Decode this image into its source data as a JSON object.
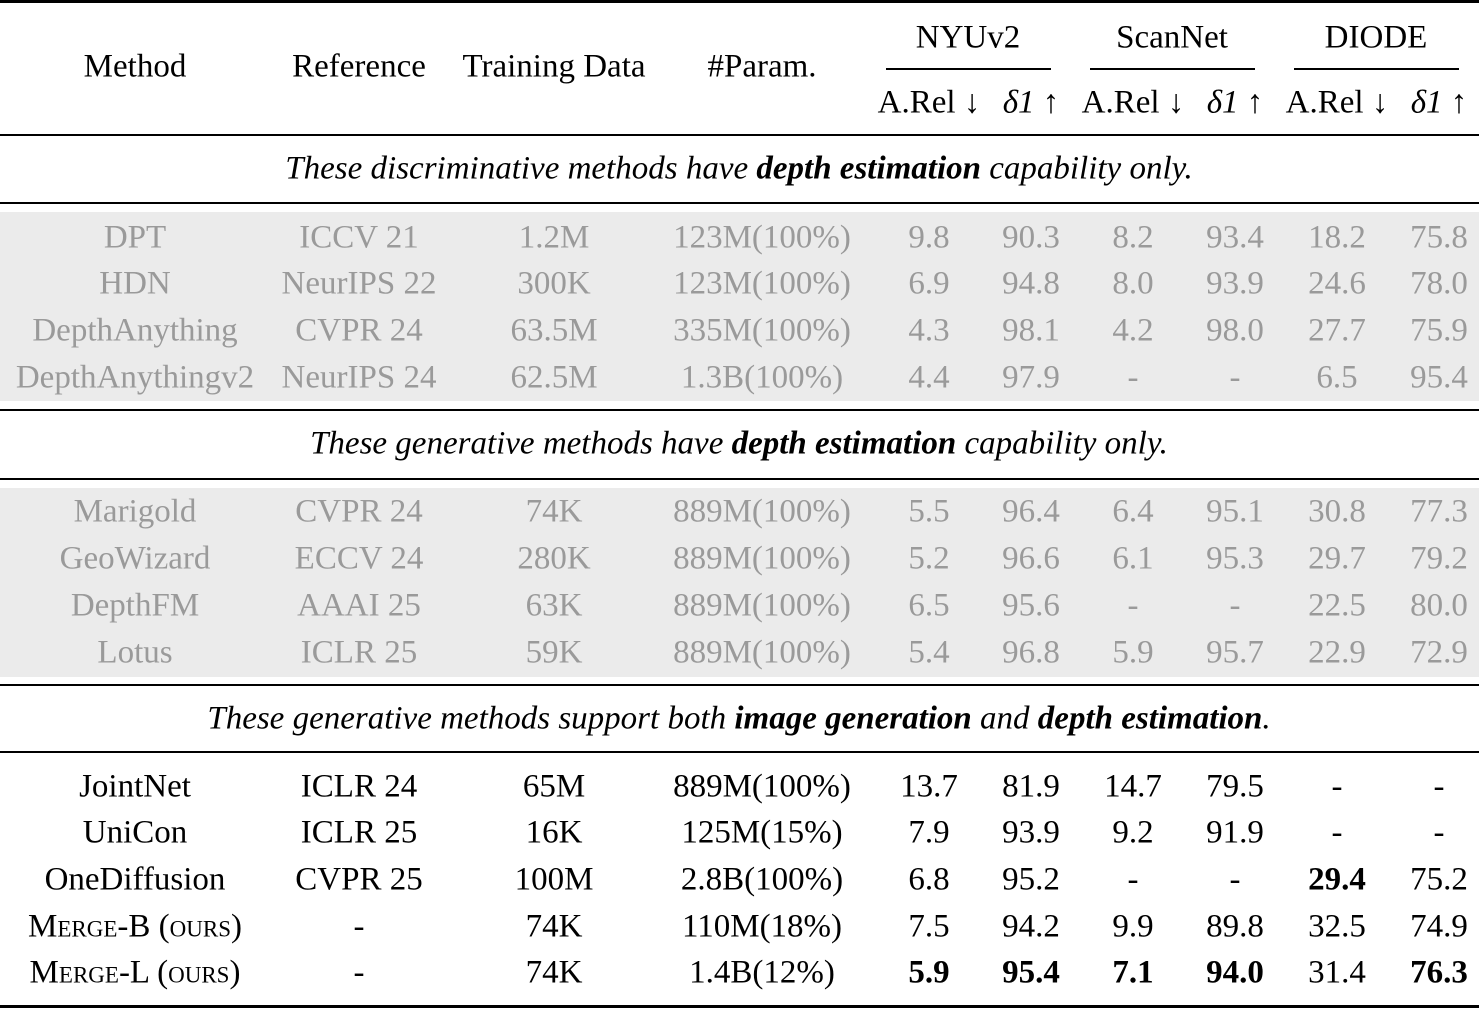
{
  "header": {
    "method": "Method",
    "reference": "Reference",
    "training_data": "Training Data",
    "params": "#Param.",
    "datasets": [
      "NYUv2",
      "ScanNet",
      "DIODE"
    ],
    "metrics": [
      "A.Rel ↓",
      "δ1 ↑",
      "A.Rel ↓",
      "δ1 ↑",
      "A.Rel ↓",
      "δ1 ↑"
    ]
  },
  "sections": [
    {
      "caption_pre": "These discriminative methods have ",
      "caption_b1": "depth estimation",
      "caption_mid": " capability only.",
      "caption_b2": "",
      "caption_post": "",
      "rows": [
        [
          "DPT",
          "ICCV 21",
          "1.2M",
          "123M(100%)",
          "9.8",
          "90.3",
          "8.2",
          "93.4",
          "18.2",
          "75.8"
        ],
        [
          "HDN",
          "NeurIPS 22",
          "300K",
          "123M(100%)",
          "6.9",
          "94.8",
          "8.0",
          "93.9",
          "24.6",
          "78.0"
        ],
        [
          "DepthAnything",
          "CVPR 24",
          "63.5M",
          "335M(100%)",
          "4.3",
          "98.1",
          "4.2",
          "98.0",
          "27.7",
          "75.9"
        ],
        [
          "DepthAnythingv2",
          "NeurIPS 24",
          "62.5M",
          "1.3B(100%)",
          "4.4",
          "97.9",
          "-",
          "-",
          "6.5",
          "95.4"
        ]
      ]
    },
    {
      "caption_pre": "These generative methods have ",
      "caption_b1": "depth estimation",
      "caption_mid": " capability only.",
      "caption_b2": "",
      "caption_post": "",
      "rows": [
        [
          "Marigold",
          "CVPR 24",
          "74K",
          "889M(100%)",
          "5.5",
          "96.4",
          "6.4",
          "95.1",
          "30.8",
          "77.3"
        ],
        [
          "GeoWizard",
          "ECCV 24",
          "280K",
          "889M(100%)",
          "5.2",
          "96.6",
          "6.1",
          "95.3",
          "29.7",
          "79.2"
        ],
        [
          "DepthFM",
          "AAAI 25",
          "63K",
          "889M(100%)",
          "6.5",
          "95.6",
          "-",
          "-",
          "22.5",
          "80.0"
        ],
        [
          "Lotus",
          "ICLR 25",
          "59K",
          "889M(100%)",
          "5.4",
          "96.8",
          "5.9",
          "95.7",
          "22.9",
          "72.9"
        ]
      ]
    },
    {
      "caption_pre": "These generative methods support both ",
      "caption_b1": "image generation",
      "caption_mid": " and ",
      "caption_b2": "depth estimation",
      "caption_post": ".",
      "rows": [
        [
          "JointNet",
          "ICLR 24",
          "65M",
          "889M(100%)",
          "13.7",
          "81.9",
          "14.7",
          "79.5",
          "-",
          "-"
        ],
        [
          "UniCon",
          "ICLR 25",
          "16K",
          "125M(15%)",
          "7.9",
          "93.9",
          "9.2",
          "91.9",
          "-",
          "-"
        ],
        [
          "OneDiffusion",
          "CVPR 25",
          "100M",
          "2.8B(100%)",
          "6.8",
          "95.2",
          "-",
          "-",
          "29.4",
          "75.2"
        ],
        [
          "MERGE-B (ours)",
          "-",
          "74K",
          "110M(18%)",
          "7.5",
          "94.2",
          "9.9",
          "89.8",
          "32.5",
          "74.9"
        ],
        [
          "MERGE-L (ours)",
          "-",
          "74K",
          "1.4B(12%)",
          "5.9",
          "95.4",
          "7.1",
          "94.0",
          "31.4",
          "76.3"
        ]
      ]
    }
  ]
}
